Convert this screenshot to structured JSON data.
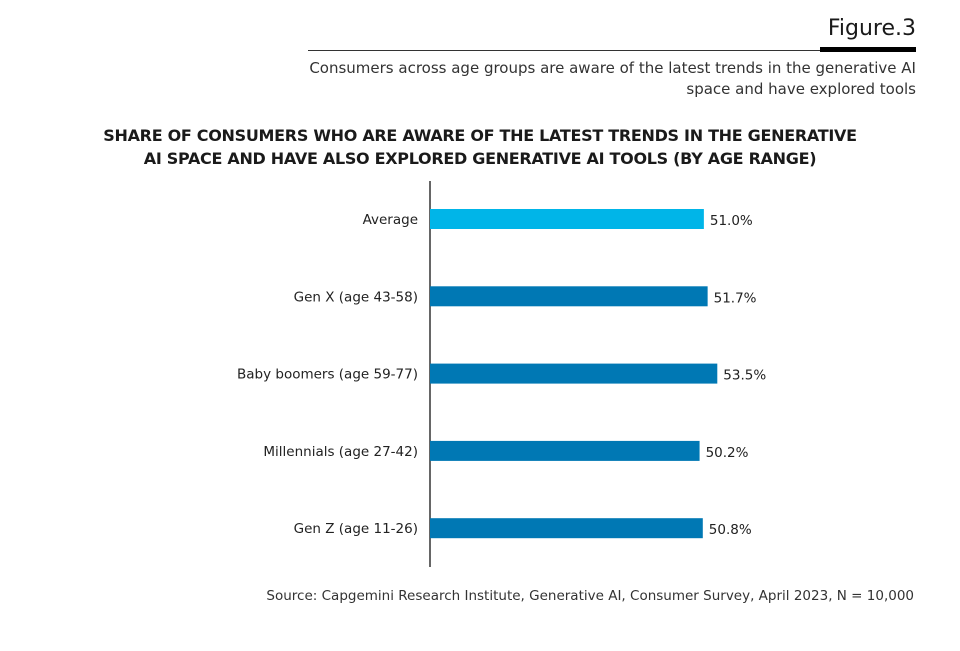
{
  "figure_label": "Figure.3",
  "subtitle": "Consumers across age groups are aware of the latest trends in the generative AI space and have explored tools",
  "source": "Source: Capgemini Research Institute, Generative AI, Consumer Survey, April 2023, N = 10,000",
  "colors": {
    "average": "#00b5e8",
    "group": "#0078b4"
  },
  "chart_data": {
    "type": "bar",
    "orientation": "horizontal",
    "title": "SHARE OF CONSUMERS WHO ARE AWARE OF THE LATEST TRENDS IN THE GENERATIVE AI SPACE AND HAVE ALSO EXPLORED GENERATIVE AI TOOLS (BY AGE RANGE)",
    "categories": [
      "Average",
      "Gen X (age 43-58)",
      "Baby boomers (age 59-77)",
      "Millennials (age 27-42)",
      "Gen Z (age 11-26)"
    ],
    "values": [
      51.0,
      51.7,
      53.5,
      50.2,
      50.8
    ],
    "labels": [
      "51.0%",
      "51.7%",
      "53.5%",
      "50.2%",
      "50.8%"
    ],
    "unit": "%",
    "xlim": [
      0,
      100
    ],
    "grid": false
  }
}
